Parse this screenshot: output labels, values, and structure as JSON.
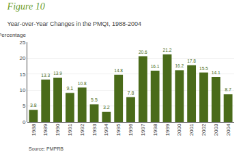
{
  "chart_data": {
    "type": "bar",
    "title": "Figure 10",
    "subtitle": "Year-over-Year Changes in the PMQI, 1988-2004",
    "ylabel": "Percentage",
    "source": "Source: PMPRB",
    "categories": [
      "1988",
      "1989",
      "1990",
      "1991",
      "1992",
      "1993",
      "1994",
      "1995",
      "1996",
      "1997",
      "1998",
      "1999",
      "2000",
      "2001",
      "2002",
      "2003",
      "2004"
    ],
    "values": [
      3.8,
      13.3,
      13.9,
      9.1,
      10.8,
      5.5,
      3.2,
      14.8,
      7.8,
      20.6,
      16.1,
      21.2,
      16.2,
      17.8,
      15.5,
      14.1,
      8.7
    ],
    "color": "#4a6b1a",
    "ylim": [
      0,
      25
    ],
    "yticks": [
      0,
      5,
      10,
      15,
      20,
      25
    ],
    "grid": true,
    "data_labels": true
  }
}
